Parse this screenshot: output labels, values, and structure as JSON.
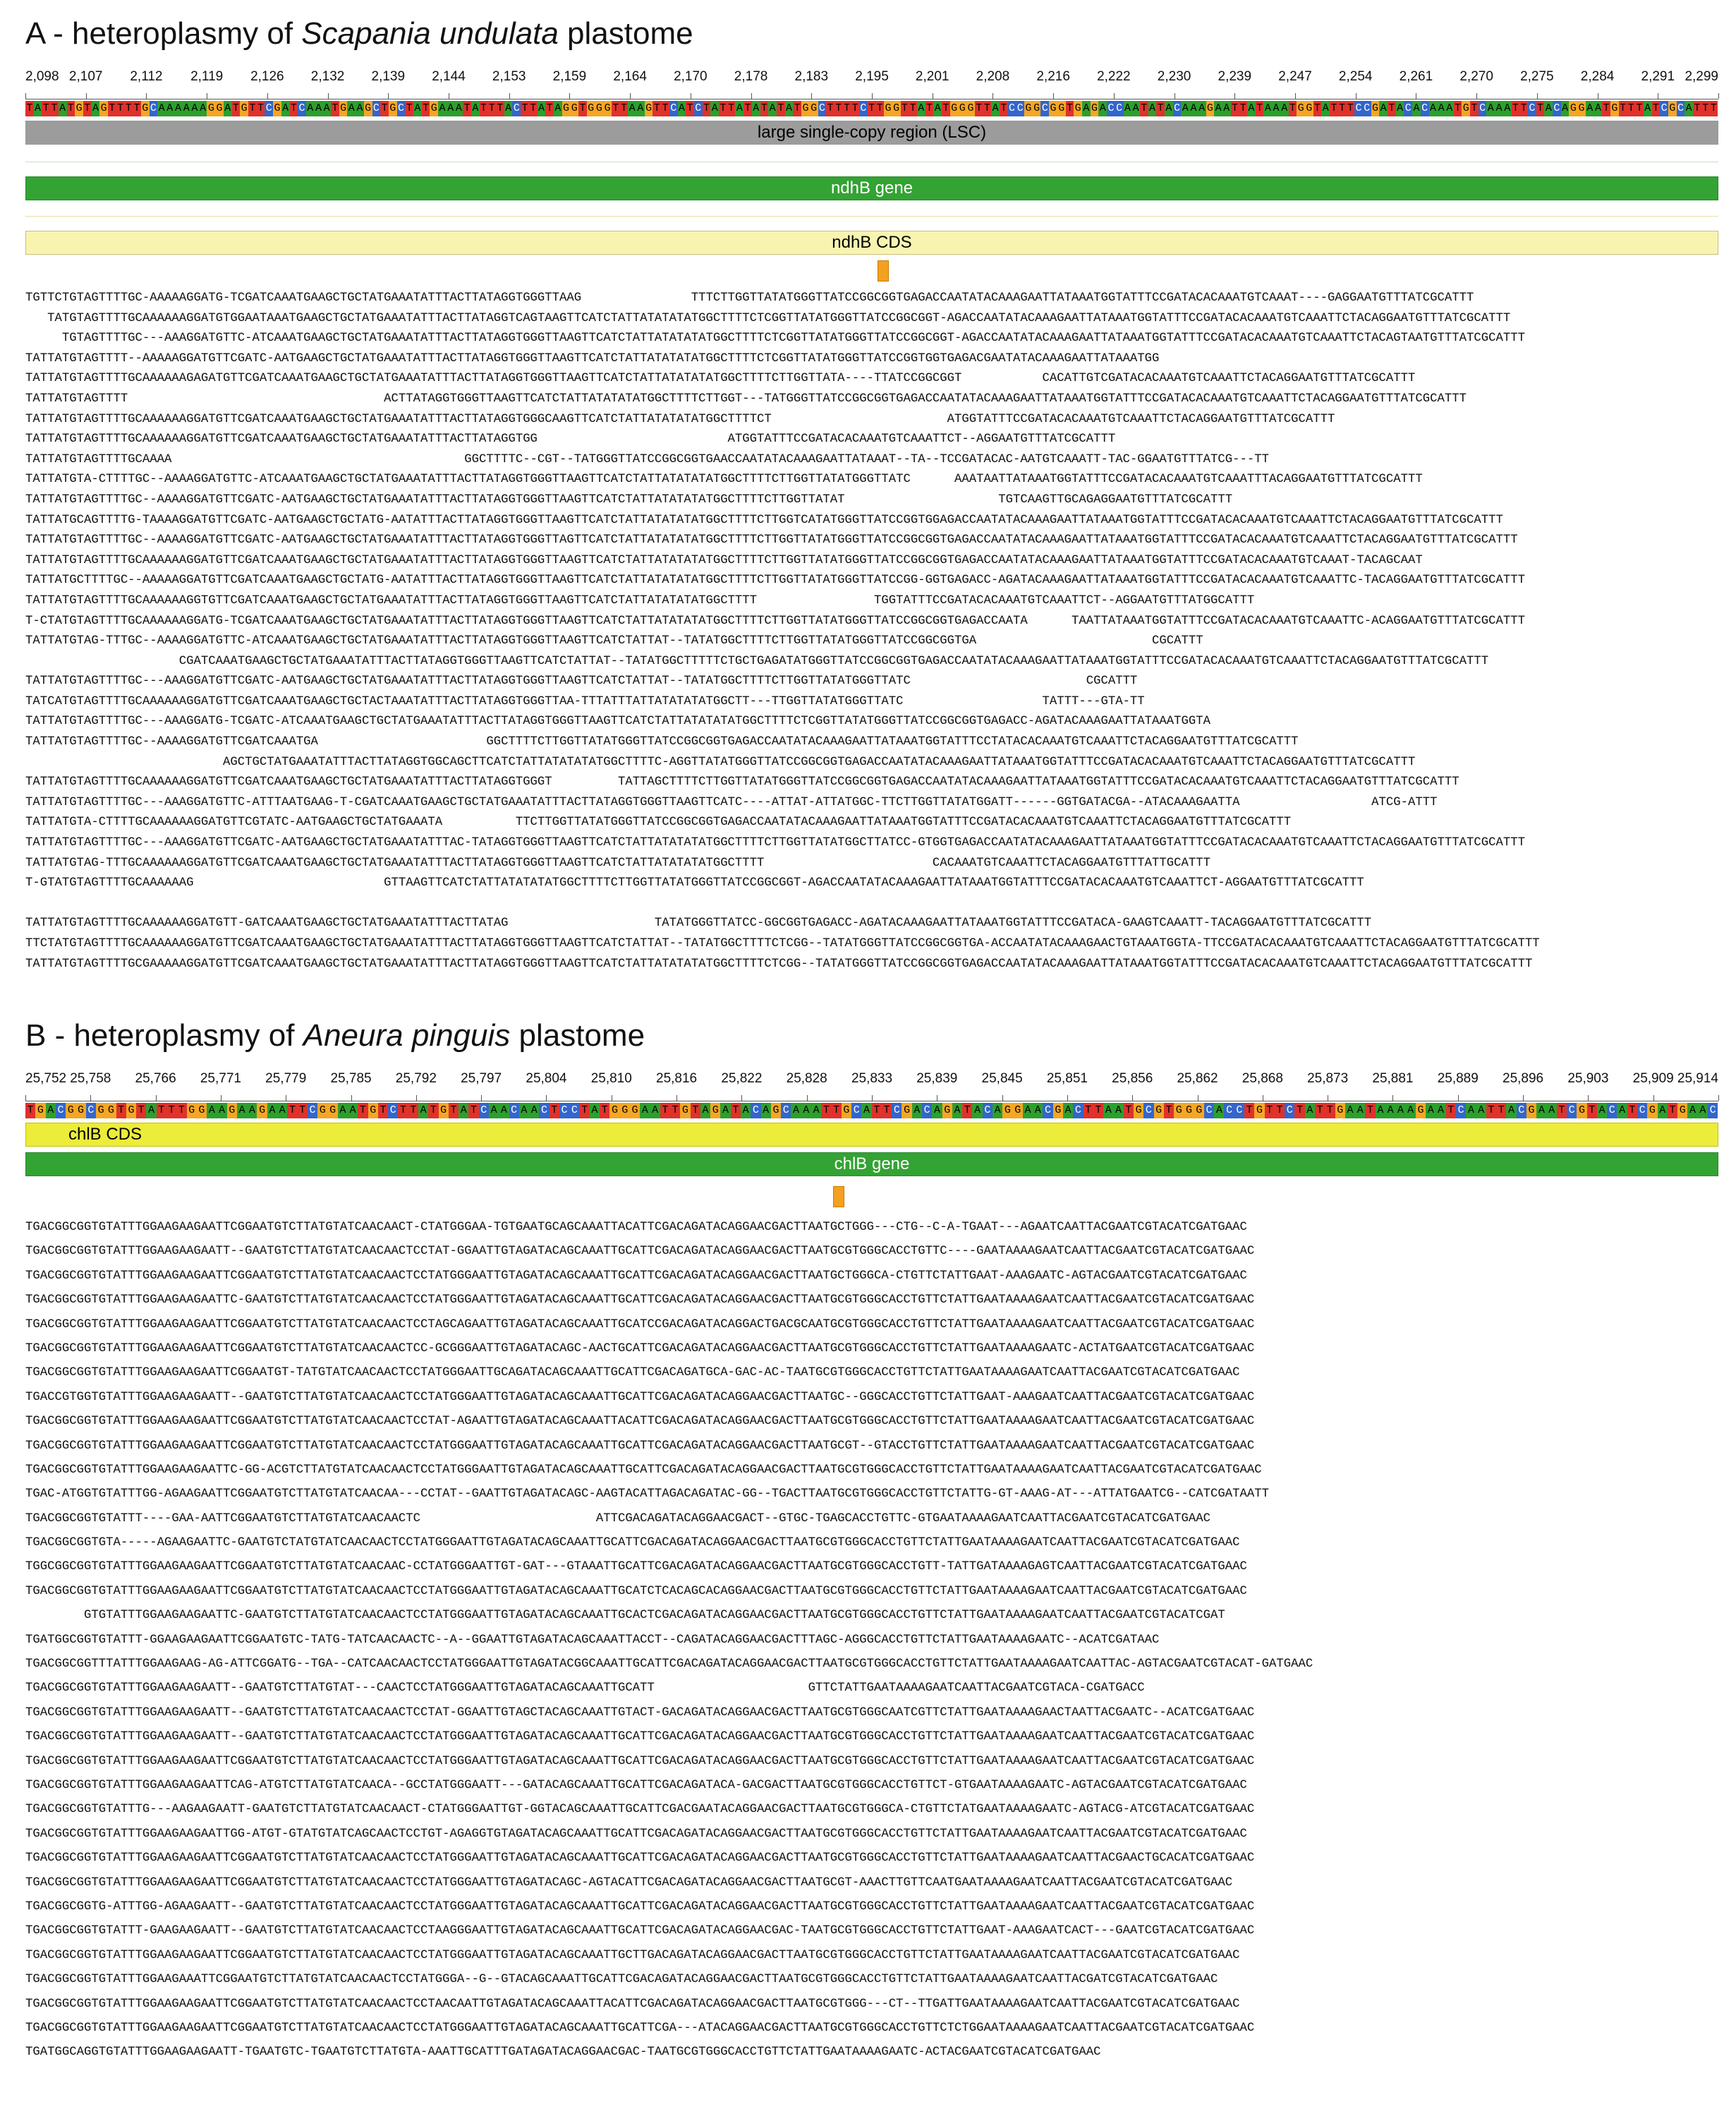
{
  "panel_a": {
    "title_prefix": "A - heteroplasmy of ",
    "species": "Scapania undulata",
    "title_suffix": " plastome",
    "ruler_ticks": [
      "2,098",
      "2,107",
      "2,112",
      "2,119",
      "2,126",
      "2,132",
      "2,139",
      "2,144",
      "2,153",
      "2,159",
      "2,164",
      "2,170",
      "2,178",
      "2,183",
      "2,195",
      "2,201",
      "2,208",
      "2,216",
      "2,222",
      "2,230",
      "2,239",
      "2,247",
      "2,254",
      "2,261",
      "2,270",
      "2,275",
      "2,284",
      "2,291",
      "2,299"
    ],
    "reference": "TATTATGTAGTTTTGCAAAAAAGGATGTTCGATCAAATGAAGCTGCTATGAAATATTTACTTATAGGTGGGTTAAGTTCATCTATTATATATATGGCTTTTCTTGGTTATATGGGTTATCCGGCGGTGAGACCAATATACAAAGAATTATAAATGGTATTTCCGATACACAAATGTCAAATTCTACAGGAATGTTTATCGCATTT",
    "lsc_label": "large single-copy region (LSC)",
    "gene_label": "ndhB gene",
    "cds_label": "ndhB CDS",
    "reads": [
      "TGTTCTGTAGTTTTGC-AAAAAGGATG-TCGATCAAATGAAGCTGCTATGAAATATTTACTTATAGGTGGGTTAAG               TTTCTTGGTTATATGGGTTATCCGGCGGTGAGACCAATATACAAAGAATTATAAATGGTATTTCCGATACACAAATGTCAAAT----GAGGAATGTTTATCGCATTT",
      "   TATGTAGTTTTGCAAAAAAGGATGTGGAATAAATGAAGCTGCTATGAAATATTTACTTATAGGTCAGTAAGTTCATCTATTATATATATGGCTTTTCTCGGTTATATGGGTTATCCGGCGGT-AGACCAATATACAAAGAATTATAAATGGTATTTCCGATACACAAATGTCAAATTCTACAGGAATGTTTATCGCATTT",
      "     TGTAGTTTTGC---AAAGGATGTTC-ATCAAATGAAGCTGCTATGAAATATTTACTTATAGGTGGGTTAAGTTCATCTATTATATATATGGCTTTTCTCGGTTATATGGGTTATCCGGCGGT-AGACCAATATACAAAGAATTATAAATGGTATTTCCGATACACAAATGTCAAATTCTACAGTAATGTTTATCGCATTT",
      "TATTATGTAGTTTT--AAAAAGGATGTTCGATC-AATGAAGCTGCTATGAAATATTTACTTATAGGTGGGTTAAGTTCATCTATTATATATATGGCTTTTCTCGGTTATATGGGTTATCCGGTGGTGAGACGAATATACAAAGAATTATAAATGG                                ",
      "TATTATGTAGTTTTGCAAAAAAGAGATGTTCGATCAAATGAAGCTGCTATGAAATATTTACTTATAGGTGGGTTAAGTTCATCTATTATATATATGGCTTTTCTTGGTTATA----TTATCCGGCGGT           CACATTGTCGATACACAAATGTCAAATTCTACAGGAATGTTTATCGCATTT",
      "TATTATGTAGTTTT                                   ACTTATAGGTGGGTTAAGTTCATCTATTATATATATGGCTTTTCTTGGT---TATGGGTTATCCGGCGGTGAGACCAATATACAAAGAATTATAAATGGTATTTCCGATACACAAATGTCAAATTCTACAGGAATGTTTATCGCATTT",
      "TATTATGTAGTTTTGCAAAAAAGGATGTTCGATCAAATGAAGCTGCTATGAAATATTTACTTATAGGTGGGCAAGTTCATCTATTATATATATGGCTTTTCT                        ATGGTATTTCCGATACACAAATGTCAAATTCTACAGGAATGTTTATCGCATTT",
      "TATTATGTAGTTTTGCAAAAAAGGATGTTCGATCAAATGAAGCTGCTATGAAATATTTACTTATAGGTGG                          ATGGTATTTCCGATACACAAATGTCAAATTCT--AGGAATGTTTATCGCATTT",
      "TATTATGTAGTTTTGCAAAA                                        GGCTTTTC--CGT--TATGGGTTATCCGGCGGTGAACCAATATACAAAGAATTATAAAT--TA--TCCGATACAC-AATGTCAAATT-TAC-GGAATGTTTATCG---TT",
      "TATTATGTA-CTTTTGC--AAAAGGATGTTC-ATCAAATGAAGCTGCTATGAAATATTTACTTATAGGTGGGTTAAGTTCATCTATTATATATATGGCTTTTCTTGGTTATATGGGTTATC      AAATAATTATAAATGGTATTTCCGATACACAAATGTCAAATTTACAGGAATGTTTATCGCATTT",
      "TATTATGTAGTTTTGC--AAAAGGATGTTCGATC-AATGAAGCTGCTATGAAATATTTACTTATAGGTGGGTTAAGTTCATCTATTATATATATGGCTTTTCTTGGTTATAT                     TGTCAAGTTGCAGAGGAATGTTTATCGCATTT",
      "TATTATGCAGTTTTG-TAAAAGGATGTTCGATC-AATGAAGCTGCTATG-AATATTTACTTATAGGTGGGTTAAGTTCATCTATTATATATATGGCTTTTCTTGGTCATATGGGTTATCCGGTGGAGACCAATATACAAAGAATTATAAATGGTATTTCCGATACACAAATGTCAAATTCTACAGGAATGTTTATCGCATTT",
      "TATTATGTAGTTTTGC--AAAAGGATGTTCGATC-AATGAAGCTGCTATGAAATATTTACTTATAGGTGGGTTAGTTCATCTATTATATATATGGCTTTTCTTGGTTATATGGGTTATCCGGCGGTGAGACCAATATACAAAGAATTATAAATGGTATTTCCGATACACAAATGTCAAATTCTACAGGAATGTTTATCGCATTT",
      "TATTATGTAGTTTTGCAAAAAAGGATGTTCGATCAAATGAAGCTGCTATGAAATATTTACTTATAGGTGGGTTAAGTTCATCTATTATATATATGGCTTTTCTTGGTTATATGGGTTATCCGGCGGTGAGACCAATATACAAAGAATTATAAATGGTATTTCCGATACACAAATGTCAAAT-TACAGCAAT        ",
      "TATTATGCTTTTGC--AAAAAGGATGTTCGATCAAATGAAGCTGCTATG-AATATTTACTTATAGGTGGGTTAAGTTCATCTATTATATATATGGCTTTTCTTGGTTATATGGGTTATCCGG-GGTGAGACC-AGATACAAAGAATTATAAATGGTATTTCCGATACACAAATGTCAAATTC-TACAGGAATGTTTATCGCATTT",
      "TATTATGTAGTTTTGCAAAAAAGGTGTTCGATCAAATGAAGCTGCTATGAAATATTTACTTATAGGTGGGTTAAGTTCATCTATTATATATATGGCTTTT                TGGTATTTCCGATACACAAATGTCAAATTCT--AGGAATGTTTATGGCATTT",
      "T-CTATGTAGTTTTGCAAAAAAGGATG-TCGATCAAATGAAGCTGCTATGAAATATTTACTTATAGGTGGGTTAAGTTCATCTATTATATATATGGCTTTTCTTGGTTATATGGGTTATCCGGCGGTGAGACCAATA      TAATTATAAATGGTATTTCCGATACACAAATGTCAAATTC-ACAGGAATGTTTATCGCATTT",
      "TATTATGTAG-TTTGC--AAAAGGATGTTC-ATCAAATGAAGCTGCTATGAAATATTTACTTATAGGTGGGTTAAGTTCATCTATTAT--TATATGGCTTTTCTTGGTTATATGGGTTATCCGGCGGTGA                        CGCATTT",
      "                     CGATCAAATGAAGCTGCTATGAAATATTTACTTATAGGTGGGTTAAGTTCATCTATTAT--TATATGGCTTTTTCTGCTGAGATATGGGTTATCCGGCGGTGAGACCAATATACAAAGAATTATAAATGGTATTTCCGATACACAAATGTCAAATTCTACAGGAATGTTTATCGCATTT",
      "TATTATGTAGTTTTGC---AAAGGATGTTCGATC-AATGAAGCTGCTATGAAATATTTACTTATAGGTGGGTTAAGTTCATCTATTAT--TATATGGCTTTTCTTGGTTATATGGGTTATC                        CGCATTT",
      "TATCATGTAGTTTTGCAAAAAAGGATGTTCGATCAAATGAAGCTGCTACTAAATATTTACTTATAGGTGGGTTAA-TTTATTTATTATATATATGGCTT---TTGGTTATATGGGTTATC                   TATTT---GTA-TT",
      "TATTATGTAGTTTTGC---AAAGGATG-TCGATC-ATCAAATGAAGCTGCTATGAAATATTTACTTATAGGTGGGTTAAGTTCATCTATTATATATATGGCTTTTCTCGGTTATATGGGTTATCCGGCGGTGAGACC-AGATACAAAGAATTATAAATGGTA                ",
      "TATTATGTAGTTTTGC--AAAAGGATGTTCGATCAAATGA                       GGCTTTTCTTGGTTATATGGGTTATCCGGCGGTGAGACCAATATACAAAGAATTATAAATGGTATTTCCTATACACAAATGTCAAATTCTACAGGAATGTTTATCGCATTT",
      "                           AGCTGCTATGAAATATTTACTTATAGGTGGCAGCTTCATCTATTATATATATGGCTTTTC-AGGTTATATGGGTTATCCGGCGGTGAGACCAATATACAAAGAATTATAAATGGTATTTCCGATACACAAATGTCAAATTCTACAGGAATGTTTATCGCATTT",
      "TATTATGTAGTTTTGCAAAAAAGGATGTTCGATCAAATGAAGCTGCTATGAAATATTTACTTATAGGTGGGT         TATTAGCTTTTCTTGGTTATATGGGTTATCCGGCGGTGAGACCAATATACAAAGAATTATAAATGGTATTTCCGATACACAAATGTCAAATTCTACAGGAATGTTTATCGCATTT",
      "TATTATGTAGTTTTGC---AAAGGATGTTC-ATTTAATGAAG-T-CGATCAAATGAAGCTGCTATGAAATATTTACTTATAGGTGGGTTAAGTTCATC----ATTAT-ATTATGGC-TTCTTGGTTATATGGATT------GGTGATACGA--ATACAAAGAATTA                  ATCG-ATTT",
      "TATTATGTA-CTTTTGCAAAAAAGGATGTTCGTATC-AATGAAGCTGCTATGAAATA          TTCTTGGTTATATGGGTTATCCGGCGGTGAGACCAATATACAAAGAATTATAAATGGTATTTCCGATACACAAATGTCAAATTCTACAGGAATGTTTATCGCATTT",
      "TATTATGTAGTTTTGC---AAAGGATGTTCGATC-AATGAAGCTGCTATGAAATATTTAC-TATAGGTGGGTTAAGTTCATCTATTATATATATGGCTTTTCTTGGTTATATGGCTTATCC-GTGGTGAGACCAATATACAAAGAATTATAAATGGTATTTCCGATACACAAATGTCAAATTCTACAGGAATGTTTATCGCATTT",
      "TATTATGTAG-TTTGCAAAAAAGGATGTTCGATCAAATGAAGCTGCTATGAAATATTTACTTATAGGTGGGTTAAGTTCATCTATTATATATATGGCTTTT                       CACAAATGTCAAATTCTACAGGAATGTTTATTGCATTT",
      "T-GTATGTAGTTTTGCAAAAAAG                          GTTAAGTTCATCTATTATATATATGGCTTTTCTTGGTTATATGGGTTATCCGGCGGT-AGACCAATATACAAAGAATTATAAATGGTATTTCCGATACACAAATGTCAAATTCT-AGGAATGTTTATCGCATTT",
      "                                                                                                                              ",
      "TATTATGTAGTTTTGCAAAAAAGGATGTT-GATCAAATGAAGCTGCTATGAAATATTTACTTATAG                    TATATGGGTTATCC-GGCGGTGAGACC-AGATACAAAGAATTATAAATGGTATTTCCGATACA-GAAGTCAAATT-TACAGGAATGTTTATCGCATTT",
      "TTCTATGTAGTTTTGCAAAAAAGGATGTTCGATCAAATGAAGCTGCTATGAAATATTTACTTATAGGTGGGTTAAGTTCATCTATTAT--TATATGGCTTTTCTCGG--TATATGGGTTATCCGGCGGTGA-ACCAATATACAAAGAACTGTAAATGGTA-TTCCGATACACAAATGTCAAATTCTACAGGAATGTTTATCGCATTT",
      "TATTATGTAGTTTTGCGAAAAAGGATGTTCGATCAAATGAAGCTGCTATGAAATATTTACTTATAGGTGGGTTAAGTTCATCTATTATATATATGGCTTTTCTCGG--TATATGGGTTATCCGGCGGTGAGACCAATATACAAAGAATTATAAATGGTATTTCCGATACACAAATGTCAAATTCTACAGGAATGTTTATCGCATTT"
    ]
  },
  "panel_b": {
    "title_prefix": "B - heteroplasmy of ",
    "species": "Aneura pinguis",
    "title_suffix": " plastome",
    "ruler_ticks": [
      "25,752",
      "25,758",
      "25,766",
      "25,771",
      "25,779",
      "25,785",
      "25,792",
      "25,797",
      "25,804",
      "25,810",
      "25,816",
      "25,822",
      "25,828",
      "25,833",
      "25,839",
      "25,845",
      "25,851",
      "25,856",
      "25,862",
      "25,868",
      "25,873",
      "25,881",
      "25,889",
      "25,896",
      "25,903",
      "25,909",
      "25,914"
    ],
    "reference": "TGACGGCGGTGTATTTGGAAGAAGAATTCGGAATGTCTTATGTATCAACAACTCCTATGGGAATTGTAGATACAGCAAATTGCATTCGACAGATACAGGAACGACTTAATGCGTGGGCACCTGTTCTATTGAATAAAAGAATCAATTACGAATCGTACATCGATGAAC",
    "cds_label": "chlB CDS",
    "gene_label": "chlB gene",
    "reads": [
      "TGACGGCGGTGTATTTGGAAGAAGAATTCGGAATGTCTTATGTATCAACAACT-CTATGGGAA-TGTGAATGCAGCAAATTACATTCGACAGATACAGGAACGACTTAATGCTGGG---CTG--C-A-TGAAT---AGAATCAATTACGAATCGTACATCGATGAAC",
      "TGACGGCGGTGTATTTGGAAGAAGAATT--GAATGTCTTATGTATCAACAACTCCTAT-GGAATTGTAGATACAGCAAATTGCATTCGACAGATACAGGAACGACTTAATGCGTGGGCACCTGTTC----GAATAAAAGAATCAATTACGAATCGTACATCGATGAAC",
      "TGACGGCGGTGTATTTGGAAGAAGAATTCGGAATGTCTTATGTATCAACAACTCCTATGGGAATTGTAGATACAGCAAATTGCATTCGACAGATACAGGAACGACTTAATGCTGGGCA-CTGTTCTATTGAAT-AAAGAATC-AGTACGAATCGTACATCGATGAAC",
      "TGACGGCGGTGTATTTGGAAGAAGAATTC-GAATGTCTTATGTATCAACAACTCCTATGGGAATTGTAGATACAGCAAATTGCATTCGACAGATACAGGAACGACTTAATGCGTGGGCACCTGTTCTATTGAATAAAAGAATCAATTACGAATCGTACATCGATGAAC",
      "TGACGGCGGTGTATTTGGAAGAAGAATTCGGAATGTCTTATGTATCAACAACTCCTAGCAGAATTGTAGATACAGCAAATTGCATCCGACAGATACAGGACTGACGCAATGCGTGGGCACCTGTTCTATTGAATAAAAGAATCAATTACGAATCGTACATCGATGAAC",
      "TGACGGCGGTGTATTTGGAAGAAGAATTCGGAATGTCTTATGTATCAACAACTCC-GCGGGAATTGTAGATACAGC-AACTGCATTCGACAGATACAGGAACGACTTAATGCGTGGGCACCTGTTCTATTGAATAAAAGAATC-ACTATGAATCGTACATCGATGAAC",
      "TGACGGCGGTGTATTTGGAAGAAGAATTCGGAATGT-TATGTATCAACAACTCCTATGGGAATTGCAGATACAGCAAATTGCATTCGACAGATGCA-GAC-AC-TAATGCGTGGGCACCTGTTCTATTGAATAAAAGAATCAATTACGAATCGTACATCGATGAAC",
      "TGACCGTGGTGTATTTGGAAGAAGAATT--GAATGTCTTATGTATCAACAACTCCTATGGGAATTGTAGATACAGCAAATTGCATTCGACAGATACAGGAACGACTTAATGC--GGGCACCTGTTCTATTGAAT-AAAGAATCAATTACGAATCGTACATCGATGAAC",
      "TGACGGCGGTGTATTTGGAAGAAGAATTCGGAATGTCTTATGTATCAACAACTCCTAT-AGAATTGTAGATACAGCAAATTACATTCGACAGATACAGGAACGACTTAATGCGTGGGCACCTGTTCTATTGAATAAAAGAATCAATTACGAATCGTACATCGATGAAC",
      "TGACGGCGGTGTATTTGGAAGAAGAATTCGGAATGTCTTATGTATCAACAACTCCTATGGGAATTGTAGATACAGCAAATTGCATTCGACAGATACAGGAACGACTTAATGCGT--GTACCTGTTCTATTGAATAAAAGAATCAATTACGAATCGTACATCGATGAAC",
      "TGACGGCGGTGTATTTGGAAGAAGAATTC-GG-ACGTCTTATGTATCAACAACTCCTATGGGAATTGTAGATACAGCAAATTGCATTCGACAGATACAGGAACGACTTAATGCGTGGGCACCTGTTCTATTGAATAAAAGAATCAATTACGAATCGTACATCGATGAAC",
      "TGAC-ATGGTGTATTTGG-AGAAGAATTCGGAATGTCTTATGTATCAACAA---CCTAT--GAATTGTAGATACAGC-AAGTACATTAGACAGATAC-GG--TGACTTAATGCGTGGGCACCTGTTCTATTG-GT-AAAG-AT---ATTATGAATCG--CATCGATAATT",
      "TGACGGCGGTGTATTT----GAA-AATTCGGAATGTCTTATGTATCAACAACTC                        ATTCGACAGATACAGGAACGACT--GTGC-TGAGCACCTGTTC-GTGAATAAAAGAATCAATTACGAATCGTACATCGATGAAC",
      "TGACGGCGGTGTA-----AGAAGAATTC-GAATGTCTATGTATCAACAACTCCTATGGGAATTGTAGATACAGCAAATTGCATTCGACAGATACAGGAACGACTTAATGCGTGGGCACCTGTTCTATTGAATAAAAGAATCAATTACGAATCGTACATCGATGAAC",
      "TGGCGGCGGTGTATTTGGAAGAAGAATTCGGAATGTCTTATGTATCAACAAC-CCTATGGGAATTGT-GAT---GTAAATTGCATTCGACAGATACAGGAACGACTTAATGCGTGGGCACCTGTT-TATTGATAAAAGAGTCAATTACGAATCGTACATCGATGAAC",
      "TGACGGCGGTGTATTTGGAAGAAGAATTCGGAATGTCTTATGTATCAACAACTCCTATGGGAATTGTAGATACAGCAAATTGCATCTCACAGCACAGGAACGACTTAATGCGTGGGCACCTGTTCTATTGAATAAAAGAATCAATTACGAATCGTACATCGATGAAC",
      "        GTGTATTTGGAAGAAGAATTC-GAATGTCTTATGTATCAACAACTCCTATGGGAATTGTAGATACAGCAAATTGCACTCGACAGATACAGGAACGACTTAATGCGTGGGCACCTGTTCTATTGAATAAAAGAATCAATTACGAATCGTACATCGAT",
      "TGATGGCGGTGTATTT-GGAAGAAGAATTCGGAATGTC-TATG-TATCAACAACTC--A--GGAATTGTAGATACAGCAAATTACCT--CAGATACAGGAACGACTTTAGC-AGGGCACCTGTTCTATTGAATAAAAGAATC--ACATCGATAAC",
      "TGACGGCGGTTTATTTGGAAGAAG-AG-ATTCGGATG--TGA--CATCAACAACTCCTATGGGAATTGTAGATACGGCAAATTGCATTCGACAGATACAGGAACGACTTAATGCGTGGGCACCTGTTCTATTGAATAAAAGAATCAATTAC-AGTACGAATCGTACAT-GATGAAC",
      "TGACGGCGGTGTATTTGGAAGAAGAATT--GAATGTCTTATGTAT---CAACTCCTATGGGAATTGTAGATACAGCAAATTGCATT                     GTTCTATTGAATAAAAGAATCAATTACGAATCGTACA-CGATGACC",
      "TGACGGCGGTGTATTTGGAAGAAGAATT--GAATGTCTTATGTATCAACAACTCCTAT-GGAATTGTAGCTACAGCAAATTGTACT-GACAGATACAGGAACGACTTAATGCGTGGGCAATCGTTCTATTGAATAAAAGAACTAATTACGAATC--ACATCGATGAAC",
      "TGACGGCGGTGTATTTGGAAGAAGAATT--GAATGTCTTATGTATCAACAACTCCTATGGGAATTGTAGATACAGCAAATTGCATTCGACAGATACAGGAACGACTTAATGCGTGGGCACCTGTTCTATTGAATAAAAGAATCAATTACGAATCGTACATCGATGAAC",
      "TGACGGCGGTGTATTTGGAAGAAGAATTCGGAATGTCTTATGTATCAACAACTCCTATGGGAATTGTAGATACAGCAAATTGCATTCGACAGATACAGGAACGACTTAATGCGTGGGCACCTGTTCTATTGAATAAAAGAATCAATTACGAATCGTACATCGATGAAC",
      "TGACGGCGGTGTATTTGGAAGAAGAATTCAG-ATGTCTTATGTATCAACA--GCCTATGGGAATT---GATACAGCAAATTGCATTCGACAGATACA-GACGACTTAATGCGTGGGCACCTGTTCT-GTGAATAAAAGAATC-AGTACGAATCGTACATCGATGAAC",
      "TGACGGCGGTGTATTTG---AAGAAGAATT-GAATGTCTTATGTATCAACAACT-CTATGGGAATTGT-GGTACAGCAAATTGCATTCGACGAATACAGGAACGACTTAATGCGTGGGCA-CTGTTCTATGAATAAAAGAATC-AGTACG-ATCGTACATCGATGAAC",
      "TGACGGCGGTGTATTTGGAAGAAGAATTGG-ATGT-GTATGTATCAGCAACTCCTGT-AGAGGTGTAGATACAGCAAATTGCATTCGACAGATACAGGAACGACTTAATGCGTGGGCACCTGTTCTATTGAATAAAAGAATCAATTACGAATCGTACATCGATGAAC",
      "TGACGGCGGTGTATTTGGAAGAAGAATTCGGAATGTCTTATGTATCAACAACTCCTATGGGAATTGTAGATACAGCAAATTGCATTCGACAGATACAGGAACGACTTAATGCGTGGGCACCTGTTCTATTGAATAAAAGAATCAATTACGAACTGCACATCGATGAAC",
      "TGACGGCGGTGTATTTGGAAGAAGAATTCGGAATGTCTTATGTATCAACAACTCCTATGGGAATTGTAGATACAGC-AGTACATTCGACAGATACAGGAACGACTTAATGCGT-AAACTTGTTCAATGAATAAAAGAATCAATTACGAATCGTACATCGATGAAC",
      "TGACGGCGGTG-ATTTGG-AGAAGAATT--GAATGTCTTATGTATCAACAACTCCTATGGGAATTGTAGATACAGCAAATTGCATTCGACAGATACAGGAACGACTTAATGCGTGGGCACCTGTTCTATTGAATAAAAGAATCAATTACGAATCGTACATCGATGAAC",
      "TGACGGCGGTGTATTT-GAAGAAGAATT--GAATGTCTTATGTATCAACAACTCCTAAGGGAATTGTAGATACAGCAAATTGCATTCGACAGATACAGGAACGAC-TAATGCGTGGGCACCTGTTCTATTGAAT-AAAGAATCACT---GAATCGTACATCGATGAAC",
      "TGACGGCGGTGTATTTGGAAGAAGAATTCGGAATGTCTTATGTATCAACAACTCCTATGGGAATTGTAGATACAGCAAATTGCTTGACAGATACAGGAACGACTTAATGCGTGGGCACCTGTTCTATTGAATAAAAGAATCAATTACGAATCGTACATCGATGAAC",
      "TGACGGCGGTGTATTTGGAAGAAATTCGGAATGTCTTATGTATCAACAACTCCTATGGGA--G--GTACAGCAAATTGCATTCGACAGATACAGGAACGACTTAATGCGTGGGCACCTGTTCTATTGAATAAAAGAATCAATTACGATCGTACATCGATGAAC",
      "TGACGGCGGTGTATTTGGAAGAAGAATTCGGAATGTCTTATGTATCAACAACTCCTAACAATTGTAGATACAGCAAATTACATTCGACAGATACAGGAACGACTTAATGCGTGGG---CT--TTGATTGAATAAAAGAATCAATTACGAATCGTACATCGATGAAC",
      "TGACGGCGGTGTATTTGGAAGAAGAATTCGGAATGTCTTATGTATCAACAACTCCTATGGGAATTGTAGATACAGCAAATTGCATTCGA---ATACAGGAACGACTTAATGCGTGGGCACCTGTTCTCTGGAATAAAAGAATCAATTACGAATCGTACATCGATGAAC",
      "TGATGGCAGGTGTATTTGGAAGAAGAATT-TGAATGTC-TGAATGTCTTATGTA-AAATTGCATTTGATAGATACAGGAACGAC-TAATGCGTGGGCACCTGTTCTATTGAATAAAAGAATC-ACTACGAATCGTACATCGATGAAC"
    ]
  }
}
